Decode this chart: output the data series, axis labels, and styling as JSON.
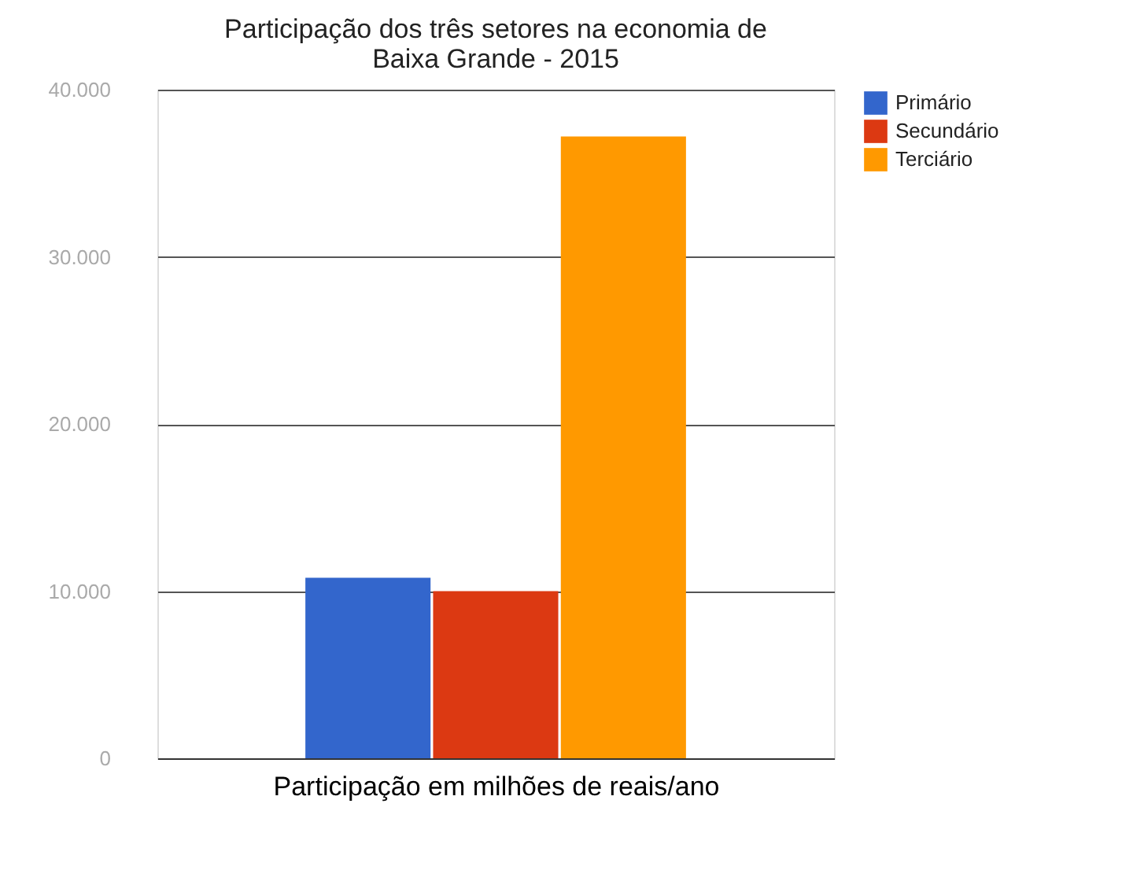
{
  "chart_data": {
    "type": "bar",
    "title": "Participação dos três setores na economia de Baixa Grande - 2015",
    "xlabel": "Participação em milhões de reais/ano",
    "categories": [
      null
    ],
    "series": [
      {
        "name": "Primário",
        "color": "#3366cc",
        "values": [
          10800
        ]
      },
      {
        "name": "Secundário",
        "color": "#dc3912",
        "values": [
          10000
        ]
      },
      {
        "name": "Terciário",
        "color": "#ff9900",
        "values": [
          37200
        ]
      }
    ],
    "ylim": [
      0,
      40000
    ],
    "yticks": [
      {
        "value": 0,
        "label": "0"
      },
      {
        "value": 10000,
        "label": "10.000"
      },
      {
        "value": 20000,
        "label": "20.000"
      },
      {
        "value": 30000,
        "label": "30.000"
      },
      {
        "value": 40000,
        "label": "40.000"
      }
    ],
    "grid": "y",
    "legend": "top right"
  }
}
